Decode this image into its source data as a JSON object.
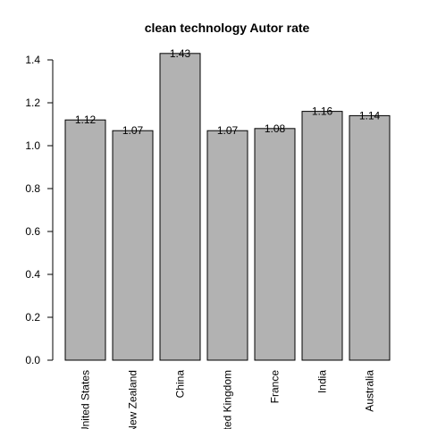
{
  "chart_data": {
    "type": "bar",
    "title": "clean technology Autor rate",
    "xlabel": "",
    "ylabel": "",
    "categories": [
      "United States",
      "New Zealand",
      "China",
      "United Kingdom",
      "France",
      "India",
      "Australia"
    ],
    "values": [
      1.12,
      1.07,
      1.43,
      1.07,
      1.08,
      1.16,
      1.14
    ],
    "data_labels": [
      "1.12",
      "1.07",
      "1.43",
      "1.07",
      "1.08",
      "1.16",
      "1.14"
    ],
    "yticks": [
      0.0,
      0.2,
      0.4,
      0.6,
      0.8,
      1.0,
      1.2,
      1.4
    ],
    "ytick_labels": [
      "0.0",
      "0.2",
      "0.4",
      "0.6",
      "0.8",
      "1.0",
      "1.2",
      "1.4"
    ],
    "ylim": [
      0,
      1.43
    ],
    "grid": false,
    "legend": "none",
    "bar_color": "#b2b2b2",
    "bar_outline": "#000000"
  }
}
